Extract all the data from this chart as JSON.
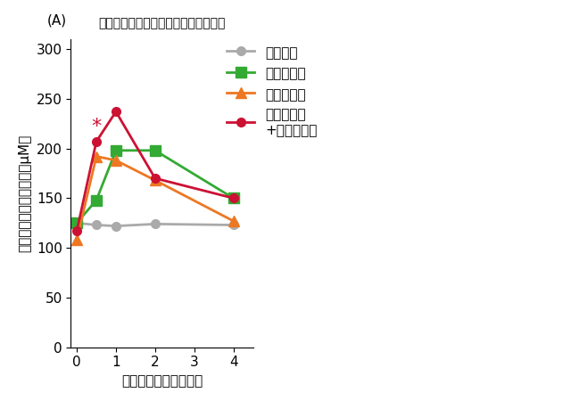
{
  "title": "《血潏中アルギニン濃度の経時変化》",
  "xlabel": "摄取後の時間（時間）",
  "ylabel": "血潏中アルギニン濃度（μM）",
  "panel_label": "(A)",
  "x": [
    0,
    0.5,
    1,
    2,
    4
  ],
  "placebo": [
    125,
    123,
    122,
    124,
    123
  ],
  "citrulline": [
    125,
    148,
    198,
    198,
    150
  ],
  "arginine": [
    108,
    192,
    188,
    168,
    127
  ],
  "arg_cit": [
    117,
    207,
    237,
    170,
    150
  ],
  "placebo_color": "#aaaaaa",
  "citrulline_color": "#33aa33",
  "arginine_color": "#ee7722",
  "arg_cit_color": "#cc1133",
  "placebo_label": "プラセボ",
  "citrulline_label": "シトルリン",
  "arginine_label": "アルギニン",
  "arg_cit_label": "アルギニン\n+シトルリン",
  "xlim": [
    -0.15,
    4.5
  ],
  "ylim": [
    0,
    310
  ],
  "yticks": [
    0,
    50,
    100,
    150,
    200,
    250,
    300
  ],
  "xticks": [
    0,
    1,
    2,
    3,
    4
  ],
  "asterisk_x": 0.5,
  "asterisk_y": 213,
  "title_fontsize": 15,
  "label_fontsize": 11,
  "tick_fontsize": 11,
  "legend_fontsize": 11
}
